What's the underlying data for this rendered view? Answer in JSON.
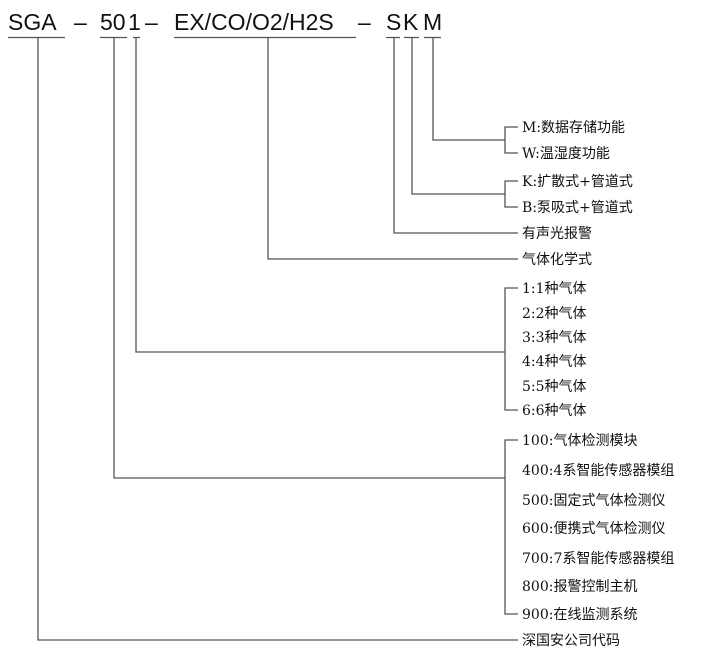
{
  "code": {
    "prefix": "SGA",
    "dash": "–",
    "series": "50",
    "gas_count": "1",
    "gases": "EX/CO/O2/H2S",
    "s": "S",
    "k": "K",
    "m": "M"
  },
  "function_options": [
    "M:数据存储功能",
    "W:温湿度功能"
  ],
  "mount_options": [
    "K:扩散式+管道式",
    "B:泵吸式+管道式"
  ],
  "alarm_label": "有声光报警",
  "gas_formula_label": "气体化学式",
  "gas_count_options": [
    "1:1种气体",
    "2:2种气体",
    "3:3种气体",
    "4:4种气体",
    "5:5种气体",
    "6:6种气体"
  ],
  "series_options": [
    "100:气体检测模块",
    "400:4系智能传感器模组",
    "500:固定式气体检测仪",
    "600:便携式气体检测仪",
    "700:7系智能传感器模组",
    "800:报警控制主机",
    "900:在线监测系统"
  ],
  "company_label": "深国安公司代码"
}
